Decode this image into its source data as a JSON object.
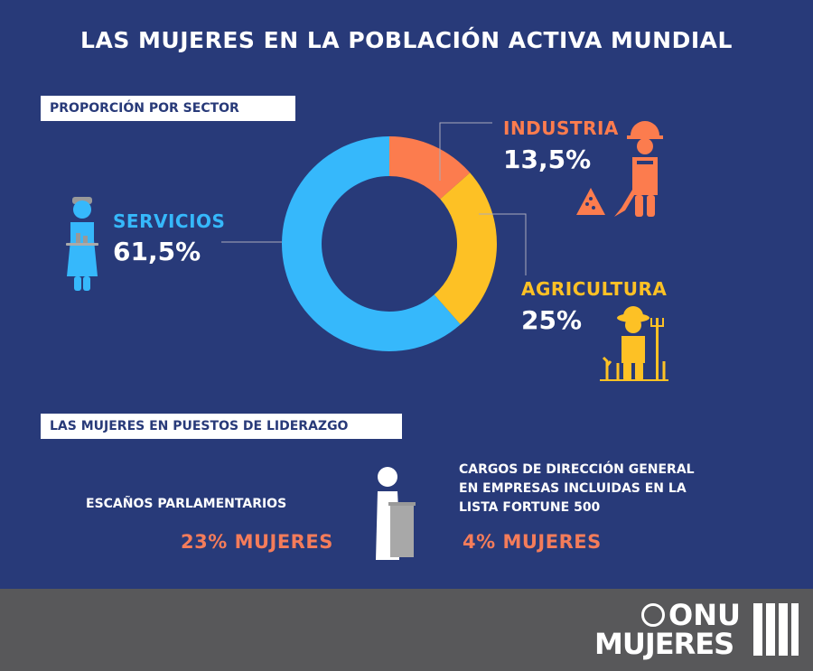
{
  "title": "LAS MUJERES EN LA POBLACIÓN ACTIVA MUNDIAL",
  "sector_heading": "PROPORCIÓN POR SECTOR",
  "leadership_heading": "LAS MUJERES EN PUESTOS DE LIDERAZGO",
  "chart_data": {
    "type": "pie",
    "donut": true,
    "categories": [
      "INDUSTRIA",
      "AGRICULTURA",
      "SERVICIOS"
    ],
    "values": [
      13.5,
      25,
      61.5
    ],
    "labels": [
      "13,5%",
      "25%",
      "61,5%"
    ],
    "colors": [
      "#fc7c4e",
      "#fdc125",
      "#36b8fb"
    ]
  },
  "leadership": {
    "parliament_label": "ESCAÑOS PARLAMENTARIOS",
    "parliament_value": "23% MUJERES",
    "ceo_label_lines": [
      "CARGOS DE DIRECCIÓN GENERAL",
      "EN EMPRESAS INCLUIDAS EN LA",
      "LISTA FORTUNE 500"
    ],
    "ceo_value": "4% MUJERES",
    "value_color": "#f47c5a"
  },
  "logo": {
    "line1": "ONU",
    "line2": "MUJERES"
  }
}
